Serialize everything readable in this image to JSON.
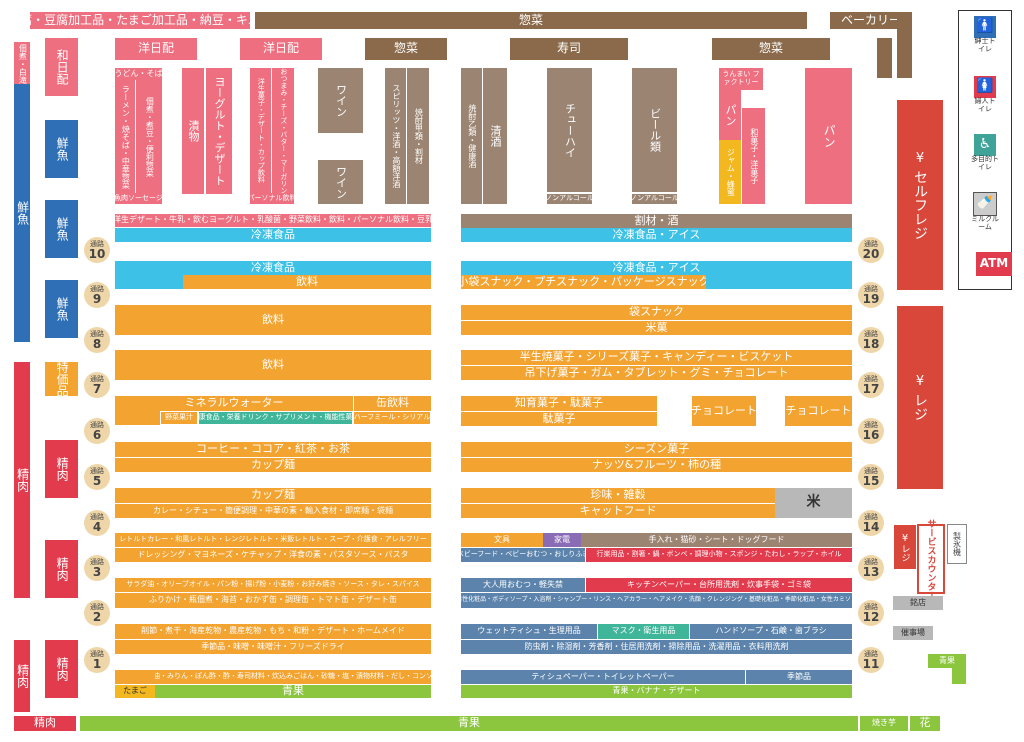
{
  "colors": {
    "pink": "#ee6f7f",
    "lightpink": "#f08a94",
    "brown": "#8a6a4a",
    "taupe": "#9b8472",
    "orange": "#f3a330",
    "blue": "#2f6fb5",
    "cyan": "#3ec1e6",
    "green": "#8cc63f",
    "red": "#e23b4d",
    "steel": "#5b83ab",
    "purple": "#8a6bb5",
    "teal": "#3fb59a",
    "yellow": "#f3b820",
    "gray": "#b8b8b8"
  },
  "top_row": {
    "tofu": "豆腐・豆腐加工品・たまご加工品・納豆・キムチ",
    "souzai": "惣菜",
    "bakery": "ベーカリー"
  },
  "row2": {
    "youhi1": "洋日配",
    "youhi2": "洋日配",
    "souzai1": "惣菜",
    "sushi": "寿司",
    "souzai2": "惣菜"
  },
  "left_wall": {
    "tsukemono": "佃煮・白滝・練物",
    "sengyo": "鮮魚",
    "seiniku1": "精肉",
    "seiniku2": "精肉",
    "seiniku_bottom": "精肉"
  },
  "left_col": {
    "wahibi": "和日配",
    "sengyo1": "鮮魚",
    "sengyo2": "鮮魚",
    "sengyo3": "鮮魚",
    "tokka": "特価品",
    "seiniku1": "精肉",
    "seiniku2": "精肉",
    "seiniku3": "精肉"
  },
  "cluster": {
    "udon": "うどん・そば",
    "ramen": "ラーメン・焼そば・中華惣菜",
    "tsukudani": "佃煮・煮豆・便利惣菜",
    "sausage": "魚肉ソーセージ",
    "tsukemono": "漬物",
    "yogurt": "ヨーグルト・デザート",
    "yogashi_desert": "洋生菓子・デザート・カップ飲料",
    "otsumami": "おつまみ・チーズ・バター・マーガリン",
    "personal": "パーソナル飲料",
    "wine1": "ワイン",
    "wine2": "ワイン",
    "spirits": "スピリッツ・洋酒・高額洋酒",
    "shochu_kou": "焼酎甲類・割材",
    "shochu_otsu": "焼酎乙類・健康酒",
    "seishu": "清酒",
    "chuhai": "チューハイ",
    "beer": "ビール類",
    "nonalc1": "ノンアルコール",
    "nonalc2": "ノンアルコール",
    "umai": "うんまい ファクトリー",
    "pan_v": "パン",
    "jam": "ジャム・蜂蜜",
    "wagashi": "和菓子・洋菓子",
    "pan_big": "パン"
  },
  "left_aisles": {
    "y_desert_line": "洋生デザート・牛乳・飲むヨーグルト・乳酸菌・野菜飲料・飲料・パーソナル飲料・豆乳",
    "reitou1": "冷凍食品",
    "reitou2": "冷凍食品",
    "inryou1": "飲料",
    "inryou2": "飲料",
    "inryou3": "飲料",
    "mineral": "ミネラルウォーター",
    "kan": "缶飲料",
    "yasai": "野菜果汁",
    "kenkou": "健康食品・栄養ドリンク・サプリメント・機能性菓子",
    "half": "ハーフミール・シリアル",
    "coffee": "コーヒー・ココア・紅茶・お茶",
    "cupmen1": "カップ麺",
    "cupmen2": "カップ麺",
    "curry": "カレー・シチュー・簡便調理・中華の素・輸入食材・即席麺・袋麺",
    "retort": "レトルトカレー・和風レトルト・レンジレトルト・米飯レトルト・スープ・介護食・アレルフリー",
    "dressing": "ドレッシング・マヨネーズ・ケチャップ・洋食の素・パスタソース・パスタ",
    "salad": "サラダ油・オリーブオイル・パン粉・揚げ粉・小麦粉・お好み焼き・ソース・タレ・スパイス",
    "furikake": "ふりかけ・瓶佃煮・海苔・おかず缶・調理缶・トマト缶・デザート缶",
    "kezuri": "削節・煮干・海産乾物・農産乾物・もち・和粉・デザート・ホームメイド",
    "kisetsu": "季節品・味噌・味噌汁・フリーズドライ",
    "shoyu": "醤油・みりん・ぽん酢・酢・寿司材料・炊込みごはん・砂糖・塩・漬物材料・だし・コンソメ",
    "tamago": "たまご",
    "seika": "青果"
  },
  "right_aisles": {
    "warizai": "割材・酒",
    "reitou_ice1": "冷凍食品・アイス",
    "reitou_ice2": "冷凍食品・アイス",
    "snack_small": "小袋スナック・プチスナック・パッケージスナック",
    "fukuro": "袋スナック",
    "beika": "米菓",
    "hannama": "半生焼菓子・シリーズ菓子・キャンディー・ビスケット",
    "tsurishita": "吊下げ菓子・ガム・タブレット・グミ・チョコレート",
    "chiiku": "知育菓子・駄菓子",
    "dagashi": "駄菓子",
    "choco1": "チョコレート",
    "choco2": "チョコレート",
    "season": "シーズン菓子",
    "nuts": "ナッツ&フルーツ・柿の種",
    "chinmi": "珍味・雑穀",
    "kome": "米",
    "character": "キャットフード",
    "bungu": "文具",
    "kaden": "家電",
    "teire": "手入れ・猫砂・シート・ドッグフード",
    "baby": "ベビーフード・ベビーおむつ・おしりふき",
    "kouraku": "行楽用品・割箸・鍋・ボンベ・調理小物・スポンジ・たわし・ラップ・ホイル",
    "otona": "大人用おむつ・軽失禁",
    "kitchen": "キッチンペーパー・台所用洗剤・炊事手袋・ゴミ袋",
    "danseika": "男性化粧品・ボディソープ・入浴剤・シャンプー・リンス・ヘアカラー・ヘアメイク・洗顔・クレンジング・基礎化粧品・季節化粧品・女性カミソリ",
    "wet": "ウェットティシュ・生理用品",
    "mask": "マスク・衛生用品",
    "handsoap": "ハンドソープ・石鹸・歯ブラシ",
    "bouchuu": "防虫剤・除湿剤・芳香剤・住居用洗剤・掃除用品・洗濯用品・衣料用洗剤",
    "tissue": "ティシュペーパー・トイレットペーパー",
    "kisetsu": "季節品",
    "seika_banana": "青果・バナナ・デザート"
  },
  "bottom": {
    "seika": "青果",
    "yakiimo": "焼き芋",
    "hana": "花",
    "seika_small": "青果"
  },
  "right_side": {
    "self_regi": "セルフレジ",
    "regi": "レジ",
    "yen": "¥",
    "service_yen": "¥",
    "service_regi": "レジ",
    "service": "サービスカウンター",
    "seihyouki": "製氷機",
    "meiten": "銘店",
    "saiji": "催事場"
  },
  "amenities": {
    "men": "紳士トイレ",
    "women": "婦人トイレ",
    "multi": "多目的トイレ",
    "milk": "ミルクルーム",
    "atm": "ATM"
  },
  "aisle_word": "通路",
  "aisles_left": [
    "10",
    "9",
    "8",
    "7",
    "6",
    "5",
    "4",
    "3",
    "2",
    "1"
  ],
  "aisles_right": [
    "20",
    "19",
    "18",
    "17",
    "16",
    "15",
    "14",
    "13",
    "12",
    "11"
  ],
  "icons": [
    "man-icon",
    "woman-icon",
    "wheelchair-icon",
    "bottle-icon"
  ]
}
